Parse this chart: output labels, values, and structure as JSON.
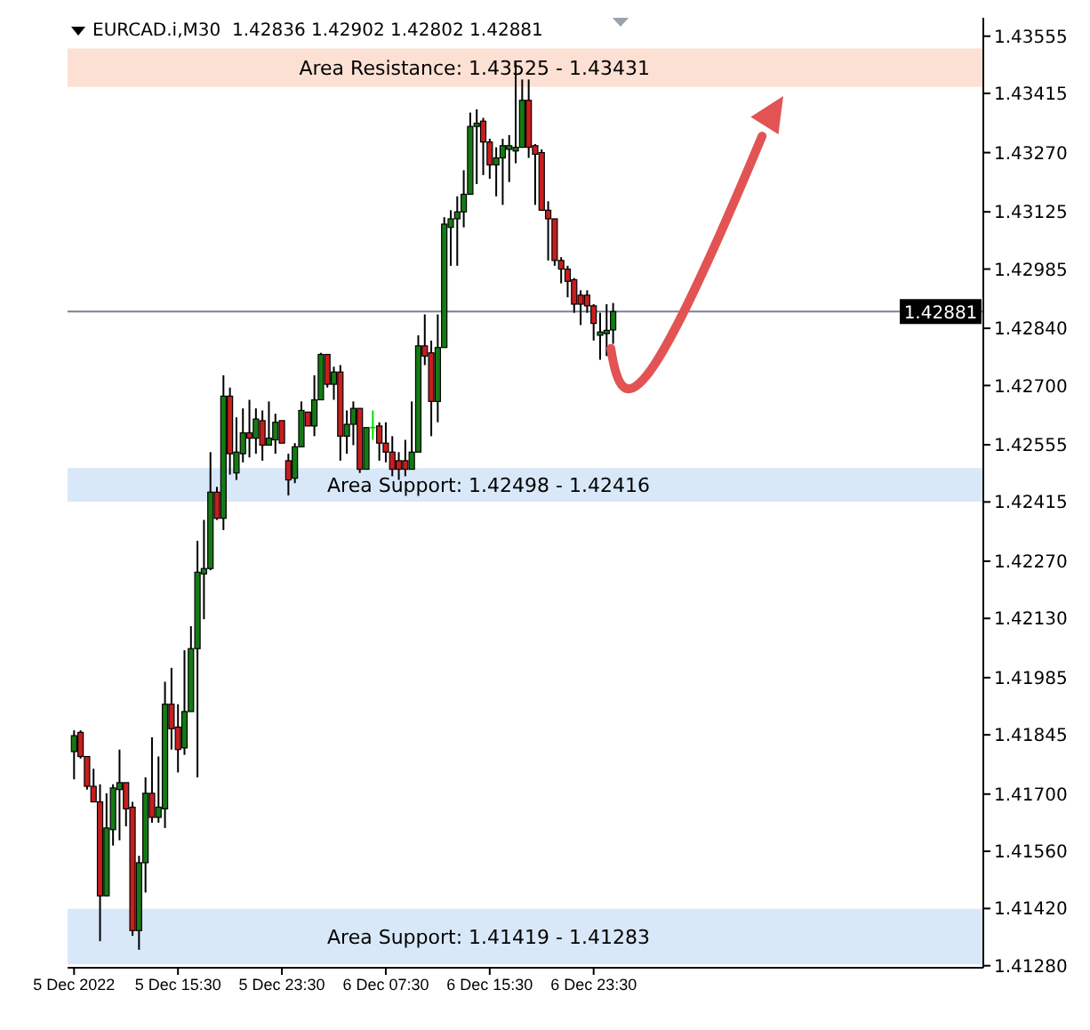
{
  "chart_data": {
    "type": "candlestick",
    "title": "EURCAD.i,M30  1.42836 1.42902 1.42802 1.42881",
    "x": [
      "2022-12-05T07:30",
      "2022-12-05T08:00",
      "2022-12-05T08:30",
      "2022-12-05T09:00",
      "2022-12-05T09:30",
      "2022-12-05T10:00",
      "2022-12-05T10:30",
      "2022-12-05T11:00",
      "2022-12-05T11:30",
      "2022-12-05T12:00",
      "2022-12-05T12:30",
      "2022-12-05T13:00",
      "2022-12-05T13:30",
      "2022-12-05T14:00",
      "2022-12-05T14:30",
      "2022-12-05T15:00",
      "2022-12-05T15:30",
      "2022-12-05T16:00",
      "2022-12-05T16:30",
      "2022-12-05T17:00",
      "2022-12-05T17:30",
      "2022-12-05T18:00",
      "2022-12-05T18:30",
      "2022-12-05T19:00",
      "2022-12-05T19:30",
      "2022-12-05T20:00",
      "2022-12-05T20:30",
      "2022-12-05T21:00",
      "2022-12-05T21:30",
      "2022-12-05T22:00",
      "2022-12-05T22:30",
      "2022-12-05T23:00",
      "2022-12-05T23:30",
      "2022-12-06T00:00",
      "2022-12-06T00:30",
      "2022-12-06T01:00",
      "2022-12-06T01:30",
      "2022-12-06T02:00",
      "2022-12-06T02:30",
      "2022-12-06T03:00",
      "2022-12-06T03:30",
      "2022-12-06T04:00",
      "2022-12-06T04:30",
      "2022-12-06T05:00",
      "2022-12-06T05:30",
      "2022-12-06T06:00",
      "2022-12-06T06:30",
      "2022-12-06T07:00",
      "2022-12-06T07:30",
      "2022-12-06T08:00",
      "2022-12-06T08:30",
      "2022-12-06T09:00",
      "2022-12-06T09:30",
      "2022-12-06T10:00",
      "2022-12-06T10:30",
      "2022-12-06T11:00",
      "2022-12-06T11:30",
      "2022-12-06T12:00",
      "2022-12-06T12:30",
      "2022-12-06T13:00",
      "2022-12-06T13:30",
      "2022-12-06T14:00",
      "2022-12-06T14:30",
      "2022-12-06T15:00",
      "2022-12-06T15:30",
      "2022-12-06T16:00",
      "2022-12-06T16:30",
      "2022-12-06T17:00",
      "2022-12-06T17:30",
      "2022-12-06T18:00",
      "2022-12-06T18:30",
      "2022-12-06T19:00",
      "2022-12-06T19:30",
      "2022-12-06T20:00",
      "2022-12-06T20:30",
      "2022-12-06T21:00",
      "2022-12-06T21:30",
      "2022-12-06T22:00",
      "2022-12-06T22:30",
      "2022-12-06T23:00",
      "2022-12-06T23:30",
      "2022-12-07T00:00",
      "2022-12-07T00:30",
      "2022-12-07T01:00"
    ],
    "ohlc": [
      [
        1.41804,
        1.41856,
        1.41736,
        1.41843
      ],
      [
        1.41851,
        1.41856,
        1.41787,
        1.41792
      ],
      [
        1.41792,
        1.41792,
        1.41711,
        1.41719
      ],
      [
        1.41719,
        1.41762,
        1.41681,
        1.41681
      ],
      [
        1.41681,
        1.41724,
        1.4134,
        1.41451
      ],
      [
        1.41451,
        1.41702,
        1.41451,
        1.41617
      ],
      [
        1.41613,
        1.41724,
        1.41574,
        1.41715
      ],
      [
        1.41711,
        1.41809,
        1.41587,
        1.41728
      ],
      [
        1.41728,
        1.41728,
        1.41621,
        1.41664
      ],
      [
        1.41668,
        1.41681,
        1.41353,
        1.41366
      ],
      [
        1.41366,
        1.41549,
        1.41319,
        1.41532
      ],
      [
        1.41532,
        1.41741,
        1.41459,
        1.41702
      ],
      [
        1.41702,
        1.41839,
        1.4163,
        1.41643
      ],
      [
        1.41643,
        1.41792,
        1.4163,
        1.41668
      ],
      [
        1.41664,
        1.41975,
        1.41617,
        1.4192
      ],
      [
        1.4192,
        1.42009,
        1.41809,
        1.4186
      ],
      [
        1.41864,
        1.4192,
        1.41753,
        1.41809
      ],
      [
        1.41813,
        1.42052,
        1.41796,
        1.41902
      ],
      [
        1.41902,
        1.42111,
        1.41902,
        1.42056
      ],
      [
        1.42056,
        1.4232,
        1.41741,
        1.42243
      ],
      [
        1.42239,
        1.42371,
        1.42128,
        1.42252
      ],
      [
        1.42252,
        1.42537,
        1.42248,
        1.42439
      ],
      [
        1.42439,
        1.42452,
        1.42371,
        1.42375
      ],
      [
        1.42375,
        1.42725,
        1.42346,
        1.42674
      ],
      [
        1.42674,
        1.42695,
        1.42482,
        1.42533
      ],
      [
        1.42486,
        1.42622,
        1.42469,
        1.42537
      ],
      [
        1.42533,
        1.42644,
        1.42512,
        1.42584
      ],
      [
        1.42584,
        1.42665,
        1.42524,
        1.42571
      ],
      [
        1.42571,
        1.42644,
        1.42533,
        1.42618
      ],
      [
        1.42614,
        1.42639,
        1.42516,
        1.42554
      ],
      [
        1.42554,
        1.42661,
        1.42554,
        1.42571
      ],
      [
        1.42567,
        1.42631,
        1.42533,
        1.4261
      ],
      [
        1.42614,
        1.42614,
        1.42559,
        1.42559
      ],
      [
        1.42516,
        1.42533,
        1.42431,
        1.42469
      ],
      [
        1.42473,
        1.42559,
        1.42461,
        1.4255
      ],
      [
        1.4255,
        1.42661,
        1.4255,
        1.42639
      ],
      [
        1.42635,
        1.42635,
        1.42601,
        1.42601
      ],
      [
        1.42601,
        1.42725,
        1.42576,
        1.42665
      ],
      [
        1.42665,
        1.4278,
        1.42665,
        1.42776
      ],
      [
        1.42776,
        1.42776,
        1.42695,
        1.42703
      ],
      [
        1.42703,
        1.42746,
        1.42665,
        1.42733
      ],
      [
        1.42733,
        1.4275,
        1.42516,
        1.42576
      ],
      [
        1.42576,
        1.42639,
        1.42533,
        1.42605
      ],
      [
        1.42605,
        1.42661,
        1.42554,
        1.42644
      ],
      [
        1.42644,
        1.42644,
        1.42486,
        1.42495
      ],
      [
        1.42495,
        1.42597,
        1.42495,
        1.42597
      ],
      [
        1.42597,
        1.42639,
        1.42567,
        1.42597
      ],
      [
        1.42601,
        1.4261,
        1.42516,
        1.42559
      ],
      [
        1.42559,
        1.4261,
        1.42512,
        1.42537
      ],
      [
        1.42537,
        1.42576,
        1.42478,
        1.42495
      ],
      [
        1.42516,
        1.42537,
        1.42469,
        1.42495
      ],
      [
        1.42516,
        1.42567,
        1.42478,
        1.42495
      ],
      [
        1.42495,
        1.42661,
        1.42495,
        1.42537
      ],
      [
        1.42537,
        1.42823,
        1.42537,
        1.42797
      ],
      [
        1.42797,
        1.42874,
        1.4275,
        1.42772
      ],
      [
        1.4278,
        1.4281,
        1.42576,
        1.42661
      ],
      [
        1.42661,
        1.42874,
        1.4261,
        1.42793
      ],
      [
        1.42793,
        1.43112,
        1.42793,
        1.43095
      ],
      [
        1.43087,
        1.43129,
        1.42993,
        1.43108
      ],
      [
        1.43108,
        1.43163,
        1.42993,
        1.43125
      ],
      [
        1.43125,
        1.43227,
        1.43087,
        1.43168
      ],
      [
        1.43168,
        1.43368,
        1.43168,
        1.43334
      ],
      [
        1.43334,
        1.43376,
        1.43193,
        1.43342
      ],
      [
        1.43347,
        1.43355,
        1.43215,
        1.43296
      ],
      [
        1.43296,
        1.43304,
        1.43206,
        1.4324
      ],
      [
        1.4324,
        1.43283,
        1.43163,
        1.43257
      ],
      [
        1.43257,
        1.43304,
        1.43142,
        1.43287
      ],
      [
        1.43278,
        1.43313,
        1.43198,
        1.43287
      ],
      [
        1.43274,
        1.43491,
        1.43244,
        1.43283
      ],
      [
        1.43283,
        1.43449,
        1.43283,
        1.43398
      ],
      [
        1.43398,
        1.43449,
        1.43257,
        1.43283
      ],
      [
        1.43287,
        1.43291,
        1.43142,
        1.43266
      ],
      [
        1.4327,
        1.43278,
        1.43129,
        1.43129
      ],
      [
        1.43129,
        1.43151,
        1.43006,
        1.43108
      ],
      [
        1.43108,
        1.43108,
        1.42993,
        1.43006
      ],
      [
        1.43006,
        1.43014,
        1.4295,
        1.42985
      ],
      [
        1.42985,
        1.42993,
        1.42916,
        1.42955
      ],
      [
        1.42959,
        1.42963,
        1.42878,
        1.42899
      ],
      [
        1.42921,
        1.42933,
        1.42848,
        1.42899
      ],
      [
        1.42921,
        1.42933,
        1.42878,
        1.42895
      ],
      [
        1.42895,
        1.42899,
        1.4281,
        1.42852
      ],
      [
        1.42823,
        1.42878,
        1.42763,
        1.42831
      ],
      [
        1.42827,
        1.42899,
        1.42772,
        1.42835
      ],
      [
        1.42836,
        1.42902,
        1.42802,
        1.42881
      ]
    ],
    "colors": [
      "#157a15",
      "#c81e1e",
      "#c81e1e",
      "#c81e1e",
      "#c81e1e",
      "#157a15",
      "#157a15",
      "#157a15",
      "#c81e1e",
      "#c81e1e",
      "#157a15",
      "#157a15",
      "#c81e1e",
      "#157a15",
      "#157a15",
      "#c81e1e",
      "#c81e1e",
      "#157a15",
      "#157a15",
      "#157a15",
      "#157a15",
      "#157a15",
      "#c81e1e",
      "#157a15",
      "#c81e1e",
      "#157a15",
      "#157a15",
      "#c81e1e",
      "#157a15",
      "#c81e1e",
      "#157a15",
      "#157a15",
      "#c81e1e",
      "#c81e1e",
      "#157a15",
      "#157a15",
      "#c81e1e",
      "#157a15",
      "#157a15",
      "#c81e1e",
      "#157a15",
      "#c81e1e",
      "#157a15",
      "#157a15",
      "#c81e1e",
      "#157a15",
      "#00e000",
      "#c81e1e",
      "#c81e1e",
      "#c81e1e",
      "#c81e1e",
      "#c81e1e",
      "#157a15",
      "#157a15",
      "#c81e1e",
      "#c81e1e",
      "#157a15",
      "#157a15",
      "#157a15",
      "#157a15",
      "#157a15",
      "#157a15",
      "#157a15",
      "#c81e1e",
      "#c81e1e",
      "#157a15",
      "#157a15",
      "#157a15",
      "#157a15",
      "#157a15",
      "#c81e1e",
      "#c81e1e",
      "#c81e1e",
      "#c81e1e",
      "#c81e1e",
      "#c81e1e",
      "#c81e1e",
      "#c81e1e",
      "#c81e1e",
      "#c81e1e",
      "#c81e1e",
      "#157a15",
      "#157a15",
      "#157a15"
    ],
    "xlim": [
      "2022-12-05T07:00",
      "2022-12-08T05:30"
    ],
    "xticks": [
      {
        "value": "2022-12-05T07:30",
        "label": "5 Dec 2022"
      },
      {
        "value": "2022-12-05T15:30",
        "label": "5 Dec 15:30"
      },
      {
        "value": "2022-12-05T23:30",
        "label": "5 Dec 23:30"
      },
      {
        "value": "2022-12-06T07:30",
        "label": "6 Dec 07:30"
      },
      {
        "value": "2022-12-06T15:30",
        "label": "6 Dec 15:30"
      },
      {
        "value": "2022-12-06T23:30",
        "label": "6 Dec 23:30"
      }
    ],
    "ylim": [
      1.41275,
      1.436
    ],
    "yticks": [
      {
        "value": 1.4128,
        "label": "1.41280"
      },
      {
        "value": 1.4142,
        "label": "1.41420"
      },
      {
        "value": 1.4156,
        "label": "1.41560"
      },
      {
        "value": 1.417,
        "label": "1.41700"
      },
      1.41845,
      1.41985,
      {
        "value": 1.4213,
        "label": "1.42130"
      },
      {
        "value": 1.4227,
        "label": "1.42270"
      },
      1.42415,
      1.42555,
      {
        "value": 1.427,
        "label": "1.42700"
      },
      {
        "value": 1.4284,
        "label": "1.42840"
      },
      1.42985,
      1.43125,
      {
        "value": 1.4327,
        "label": "1.43270"
      },
      1.43415,
      1.43555
    ],
    "ref_lines": [
      {
        "axis": "y",
        "value": 1.42881,
        "label": "1.42881",
        "color": "#7a8290"
      }
    ],
    "bands": [
      {
        "axis": "y",
        "from": 1.43431,
        "to": 1.43525,
        "label": "Area Resistance: 1.43525 - 1.43431",
        "color": "#fbe0d3"
      },
      {
        "axis": "y",
        "from": 1.42416,
        "to": 1.42498,
        "label": "Area Support: 1.42498 - 1.42416",
        "color": "#d8e8f8"
      },
      {
        "axis": "y",
        "from": 1.41283,
        "to": 1.41419,
        "label": "Area Support: 1.41419 - 1.41283",
        "color": "#d8e8f8"
      }
    ]
  }
}
